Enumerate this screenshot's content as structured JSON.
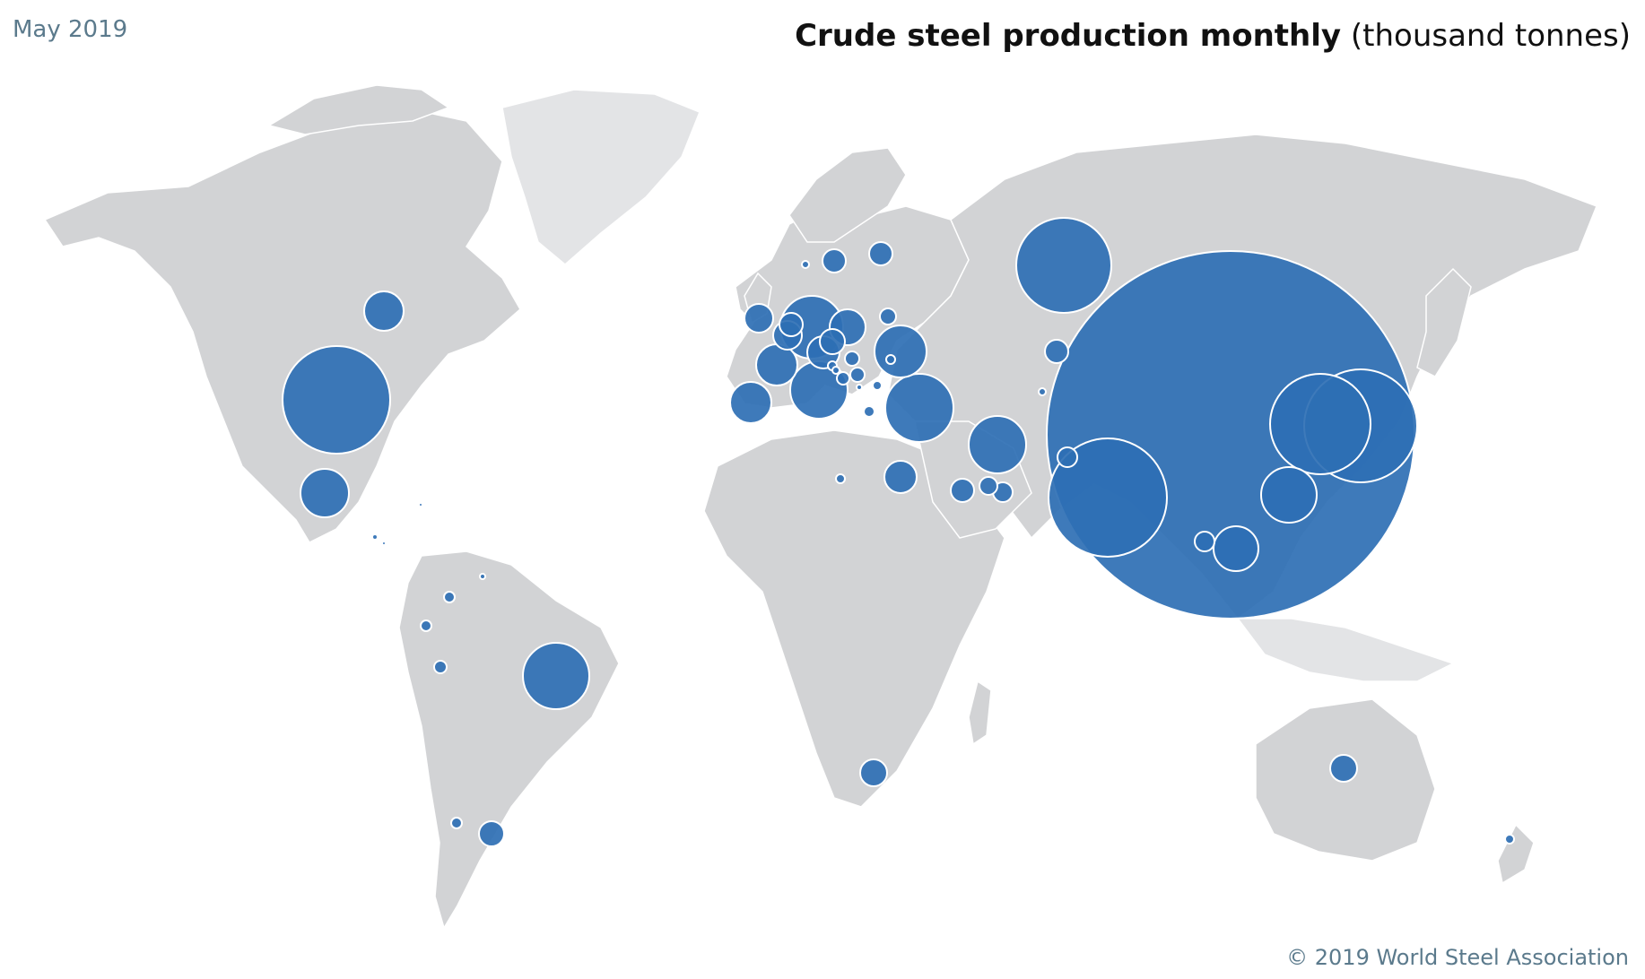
{
  "header": {
    "date": "May 2019",
    "title_bold": "Crude steel production monthly",
    "title_unit": "(thousand tonnes)"
  },
  "footer": {
    "copyright": "© 2019 World Steel Association"
  },
  "colors": {
    "bubble": "#2e6fb4",
    "land": "#d2d3d5",
    "land_light": "#e3e4e6",
    "date_text": "#5b7a8c"
  }
}
